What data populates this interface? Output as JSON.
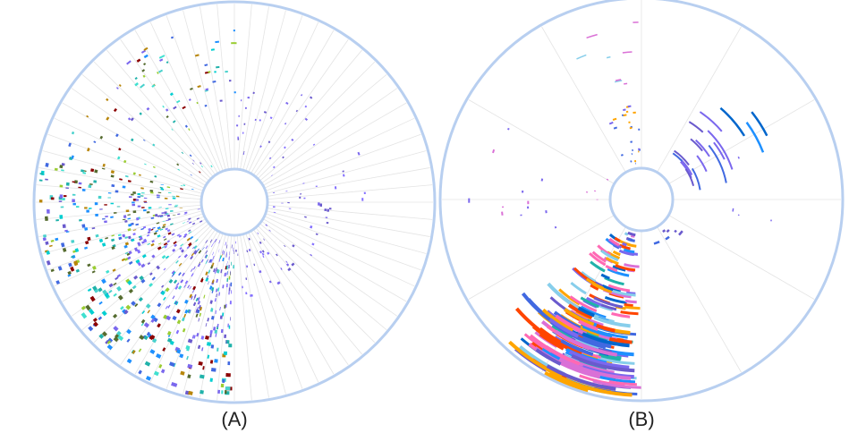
{
  "panels": [
    {
      "label": "(A)",
      "ring_color": "#b8cff0",
      "spoke_color": "#e4e4e4",
      "spoke_count": 72,
      "palette": [
        "#7b68ee",
        "#6a5acd",
        "#48d1cc",
        "#40e0d0",
        "#9acd32",
        "#b8860b",
        "#4169e1",
        "#20b2aa",
        "#8b0000",
        "#1e90ff",
        "#556b2f",
        "#00ced1"
      ]
    },
    {
      "label": "(B)",
      "ring_color": "#b8cff0",
      "spoke_color": "#e4e4e4",
      "spoke_count": 12,
      "palette": [
        "#7b68ee",
        "#6a5acd",
        "#4169e1",
        "#1e90ff",
        "#87ceeb",
        "#ff69b4",
        "#da70d6",
        "#ffa500",
        "#0066cc",
        "#20b2aa",
        "#ff4500"
      ]
    }
  ]
}
